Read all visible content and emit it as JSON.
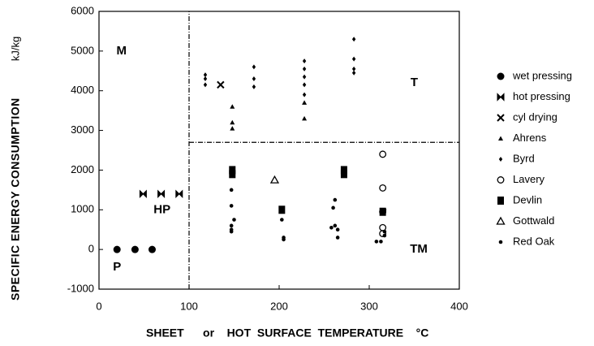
{
  "chart_data": {
    "type": "scatter",
    "xlabel": "SHEET      or    HOT  SURFACE  TEMPERATURE    °C",
    "ylabel": "SPECIFIC ENERGY CONSUMPTION",
    "yunit": "kJ/kg",
    "xlim": [
      0,
      400
    ],
    "xticks": [
      0,
      100,
      200,
      300,
      400
    ],
    "ylim": [
      -1000,
      6000
    ],
    "yticks": [
      -1000,
      0,
      1000,
      2000,
      3000,
      4000,
      5000,
      6000
    ],
    "legend": "right",
    "annotations": [
      {
        "text": "M",
        "x": 25,
        "y": 5000
      },
      {
        "text": "T",
        "x": 350,
        "y": 4200
      },
      {
        "text": "HP",
        "x": 70,
        "y": 1000
      },
      {
        "text": "P",
        "x": 20,
        "y": -450
      },
      {
        "text": "TM",
        "x": 355,
        "y": 0
      }
    ],
    "reference_lines": [
      {
        "x": [
          100,
          100
        ],
        "y": [
          -1000,
          6000
        ]
      },
      {
        "x": [
          100,
          400
        ],
        "y": [
          2700,
          2700
        ]
      }
    ],
    "series": [
      {
        "name": "wet pressing",
        "marker": "circle",
        "color": "#000000",
        "x": [
          20,
          40,
          59
        ],
        "values": [
          0,
          0,
          0
        ]
      },
      {
        "name": "hot pressing",
        "marker": "bowtie",
        "color": "#000000",
        "x": [
          49,
          69,
          89
        ],
        "values": [
          1400,
          1400,
          1400
        ]
      },
      {
        "name": "cyl drying",
        "marker": "x",
        "color": "#000000",
        "x": [
          135
        ],
        "values": [
          4150
        ]
      },
      {
        "name": "Ahrens",
        "marker": "triangle",
        "color": "#000000",
        "x": [
          148,
          148,
          148,
          228,
          228
        ],
        "values": [
          3600,
          3200,
          3050,
          3700,
          3300
        ]
      },
      {
        "name": "Byrd",
        "marker": "diamond",
        "color": "#000000",
        "x": [
          118,
          118,
          118,
          172,
          172,
          172,
          228,
          228,
          228,
          228,
          228,
          283,
          283,
          283,
          283
        ],
        "values": [
          4400,
          4300,
          4150,
          4600,
          4300,
          4100,
          4750,
          4550,
          4350,
          4150,
          3900,
          5300,
          4800,
          4550,
          4450
        ]
      },
      {
        "name": "Lavery",
        "marker": "open-circle",
        "color": "#000000",
        "x": [
          315,
          315,
          315,
          315,
          315
        ],
        "values": [
          2400,
          1550,
          950,
          550,
          400
        ]
      },
      {
        "name": "Devlin",
        "marker": "square",
        "color": "#000000",
        "x": [
          148,
          148,
          203,
          272,
          272,
          315
        ],
        "values": [
          2000,
          1900,
          1000,
          2000,
          1900,
          950
        ]
      },
      {
        "name": "Gottwald",
        "marker": "open-triangle",
        "color": "#000000",
        "x": [
          195
        ],
        "values": [
          1750
        ]
      },
      {
        "name": "Red Oak",
        "marker": "dot",
        "color": "#000000",
        "x": [
          147,
          147,
          150,
          147,
          147,
          147,
          203,
          205,
          205,
          260,
          262,
          262,
          258,
          265,
          265,
          308,
          313,
          317,
          317,
          317
        ],
        "values": [
          1500,
          1100,
          750,
          600,
          500,
          450,
          750,
          300,
          250,
          1050,
          1250,
          600,
          550,
          500,
          300,
          200,
          200,
          350,
          450,
          1000
        ]
      }
    ]
  }
}
